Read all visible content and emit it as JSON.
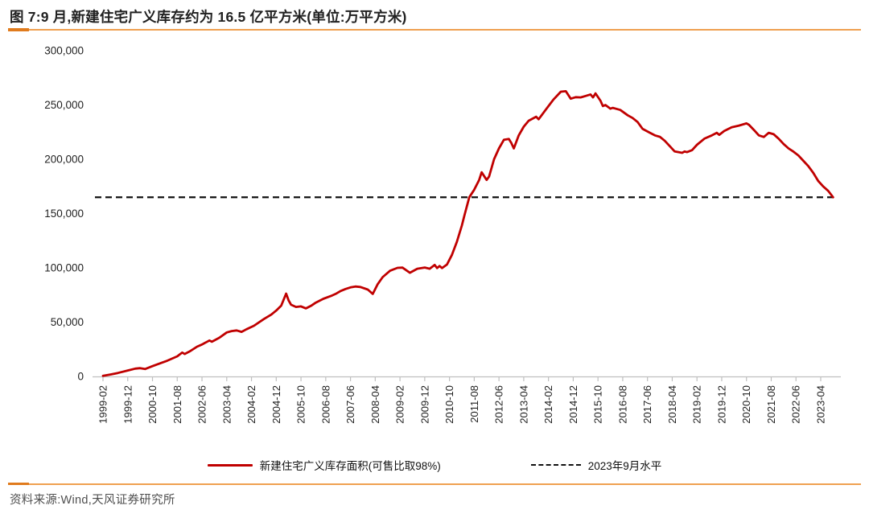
{
  "header": {
    "title": "图 7:9 月,新建住宅广义库存约为 16.5 亿平方米(单位:万平方米)"
  },
  "footer": {
    "source": "资料来源:Wind,天风证券研究所"
  },
  "colors": {
    "series_red": "#C00000",
    "reference_black": "#111111",
    "accent_orange": "#E07B1D",
    "accent_orange_light": "#EFA050",
    "axis_gray": "#BFBFBF",
    "tick_text": "#1F1F1F"
  },
  "chart_data": {
    "type": "line",
    "title": "图 7:9 月,新建住宅广义库存约为 16.5 亿平方米(单位:万平方米)",
    "unit": "万平方米",
    "xlabel": "",
    "ylabel": "",
    "ylim": [
      0,
      300000
    ],
    "grid": false,
    "legend_position": "bottom",
    "y_ticks": [
      0,
      50000,
      100000,
      150000,
      200000,
      250000,
      300000
    ],
    "x_tick_labels": [
      "1999-02",
      "1999-12",
      "2000-10",
      "2001-08",
      "2002-06",
      "2003-04",
      "2004-02",
      "2004-12",
      "2005-10",
      "2006-08",
      "2007-06",
      "2008-04",
      "2009-02",
      "2009-12",
      "2010-10",
      "2011-08",
      "2012-06",
      "2013-04",
      "2014-02",
      "2014-12",
      "2015-10",
      "2016-08",
      "2017-06",
      "2018-04",
      "2019-02",
      "2019-12",
      "2020-10",
      "2021-08",
      "2022-06",
      "2023-04"
    ],
    "x_range_months": [
      "1999-02",
      "2023-09"
    ],
    "reference_line": {
      "label": "2023年9月水平",
      "value": 165000,
      "style": "dashed"
    },
    "series": [
      {
        "name": "新建住宅广义库存面积(可售比取98%)",
        "color": "#C00000",
        "points": [
          [
            "1999-02",
            500
          ],
          [
            "1999-05",
            1800
          ],
          [
            "1999-08",
            3200
          ],
          [
            "1999-12",
            5500
          ],
          [
            "2000-03",
            7200
          ],
          [
            "2000-05",
            7600
          ],
          [
            "2000-07",
            6800
          ],
          [
            "2000-10",
            9500
          ],
          [
            "2001-01",
            12000
          ],
          [
            "2001-04",
            14500
          ],
          [
            "2001-08",
            18500
          ],
          [
            "2001-10",
            22000
          ],
          [
            "2001-11",
            20700
          ],
          [
            "2002-01",
            23000
          ],
          [
            "2002-04",
            27400
          ],
          [
            "2002-06",
            29400
          ],
          [
            "2002-09",
            33100
          ],
          [
            "2002-10",
            31900
          ],
          [
            "2003-01",
            35600
          ],
          [
            "2003-04",
            40500
          ],
          [
            "2003-06",
            41800
          ],
          [
            "2003-08",
            42400
          ],
          [
            "2003-10",
            41000
          ],
          [
            "2003-12",
            43500
          ],
          [
            "2004-03",
            46700
          ],
          [
            "2004-07",
            52800
          ],
          [
            "2004-10",
            57000
          ],
          [
            "2004-12",
            60700
          ],
          [
            "2005-02",
            65200
          ],
          [
            "2005-04",
            76300
          ],
          [
            "2005-05",
            70000
          ],
          [
            "2005-06",
            66000
          ],
          [
            "2005-08",
            64000
          ],
          [
            "2005-10",
            64500
          ],
          [
            "2005-12",
            62700
          ],
          [
            "2006-02",
            65000
          ],
          [
            "2006-04",
            68000
          ],
          [
            "2006-07",
            71500
          ],
          [
            "2006-10",
            74000
          ],
          [
            "2006-12",
            76000
          ],
          [
            "2007-02",
            78700
          ],
          [
            "2007-04",
            80500
          ],
          [
            "2007-06",
            82000
          ],
          [
            "2007-08",
            82800
          ],
          [
            "2007-10",
            82400
          ],
          [
            "2008-01",
            80000
          ],
          [
            "2008-03",
            76000
          ],
          [
            "2008-05",
            85000
          ],
          [
            "2008-07",
            91500
          ],
          [
            "2008-10",
            97300
          ],
          [
            "2009-01",
            100000
          ],
          [
            "2009-03",
            100200
          ],
          [
            "2009-06",
            95500
          ],
          [
            "2009-09",
            99200
          ],
          [
            "2009-12",
            100300
          ],
          [
            "2010-02",
            99200
          ],
          [
            "2010-04",
            102700
          ],
          [
            "2010-05",
            99800
          ],
          [
            "2010-06",
            101700
          ],
          [
            "2010-07",
            99800
          ],
          [
            "2010-09",
            103000
          ],
          [
            "2010-11",
            112000
          ],
          [
            "2011-01",
            124000
          ],
          [
            "2011-03",
            139000
          ],
          [
            "2011-04",
            148000
          ],
          [
            "2011-06",
            165000
          ],
          [
            "2011-08",
            172000
          ],
          [
            "2011-10",
            181000
          ],
          [
            "2011-11",
            188000
          ],
          [
            "2012-01",
            181000
          ],
          [
            "2012-02",
            184000
          ],
          [
            "2012-04",
            200000
          ],
          [
            "2012-06",
            210000
          ],
          [
            "2012-08",
            218000
          ],
          [
            "2012-10",
            218700
          ],
          [
            "2012-11",
            215000
          ],
          [
            "2012-12",
            210000
          ],
          [
            "2013-02",
            222000
          ],
          [
            "2013-04",
            230000
          ],
          [
            "2013-06",
            235500
          ],
          [
            "2013-09",
            239200
          ],
          [
            "2013-10",
            236800
          ],
          [
            "2014-01",
            246000
          ],
          [
            "2014-04",
            255000
          ],
          [
            "2014-07",
            262200
          ],
          [
            "2014-09",
            262700
          ],
          [
            "2014-11",
            255800
          ],
          [
            "2015-01",
            257200
          ],
          [
            "2015-03",
            257000
          ],
          [
            "2015-05",
            258300
          ],
          [
            "2015-07",
            259700
          ],
          [
            "2015-08",
            257000
          ],
          [
            "2015-09",
            260700
          ],
          [
            "2015-11",
            254000
          ],
          [
            "2015-12",
            249000
          ],
          [
            "2016-01",
            250000
          ],
          [
            "2016-03",
            246600
          ],
          [
            "2016-04",
            247300
          ],
          [
            "2016-07",
            245400
          ],
          [
            "2016-10",
            240500
          ],
          [
            "2016-12",
            238000
          ],
          [
            "2017-02",
            234300
          ],
          [
            "2017-04",
            228100
          ],
          [
            "2017-07",
            224400
          ],
          [
            "2017-09",
            222000
          ],
          [
            "2017-11",
            220700
          ],
          [
            "2018-01",
            217000
          ],
          [
            "2018-03",
            212100
          ],
          [
            "2018-05",
            207200
          ],
          [
            "2018-08",
            205900
          ],
          [
            "2018-09",
            207200
          ],
          [
            "2018-10",
            206600
          ],
          [
            "2018-12",
            208400
          ],
          [
            "2019-02",
            213300
          ],
          [
            "2019-05",
            219000
          ],
          [
            "2019-08",
            222000
          ],
          [
            "2019-10",
            224400
          ],
          [
            "2019-11",
            222500
          ],
          [
            "2020-01",
            226000
          ],
          [
            "2020-04",
            229500
          ],
          [
            "2020-07",
            231000
          ],
          [
            "2020-10",
            233000
          ],
          [
            "2020-11",
            231800
          ],
          [
            "2021-01",
            227000
          ],
          [
            "2021-03",
            222000
          ],
          [
            "2021-05",
            220500
          ],
          [
            "2021-07",
            224400
          ],
          [
            "2021-09",
            223000
          ],
          [
            "2021-11",
            219000
          ],
          [
            "2022-01",
            214000
          ],
          [
            "2022-03",
            210000
          ],
          [
            "2022-05",
            207000
          ],
          [
            "2022-07",
            203500
          ],
          [
            "2022-09",
            198500
          ],
          [
            "2022-11",
            193600
          ],
          [
            "2023-01",
            187400
          ],
          [
            "2023-03",
            180000
          ],
          [
            "2023-05",
            175000
          ],
          [
            "2023-07",
            171000
          ],
          [
            "2023-08",
            168000
          ],
          [
            "2023-09",
            165000
          ]
        ]
      }
    ]
  }
}
